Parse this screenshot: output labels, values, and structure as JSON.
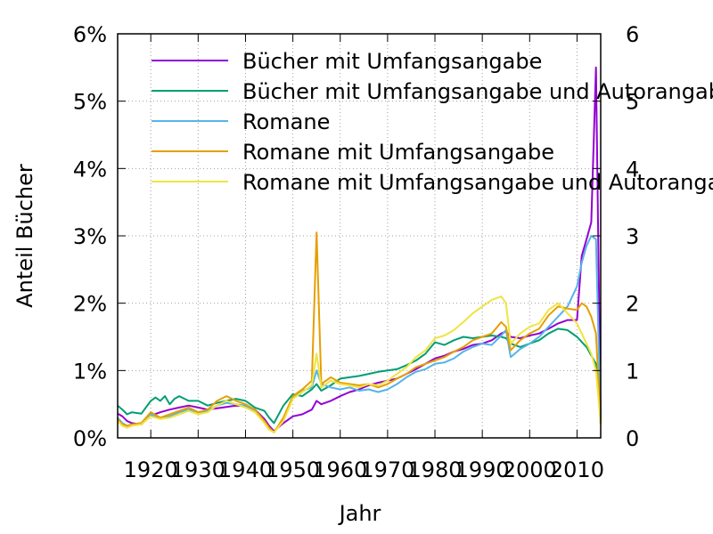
{
  "chart_data": {
    "type": "line",
    "title": "",
    "xlabel": "Jahr",
    "ylabel": "Anteil Bücher",
    "xlim": [
      1913,
      2015
    ],
    "ylim": [
      0,
      6
    ],
    "y2lim": [
      0,
      6
    ],
    "x_ticks": [
      "1920",
      "1930",
      "1940",
      "1950",
      "1960",
      "1970",
      "1980",
      "1990",
      "2000",
      "2010"
    ],
    "y_ticks": [
      "0%",
      "1%",
      "2%",
      "3%",
      "4%",
      "5%",
      "6%"
    ],
    "y2_ticks": [
      "0",
      "1",
      "2",
      "3",
      "4",
      "5",
      "6"
    ],
    "grid": true,
    "legend_position": "top-right",
    "series": [
      {
        "name": "Bücher mit Umfangsangabe",
        "color": "#9400d3",
        "x": [
          1913,
          1914,
          1915,
          1916,
          1918,
          1920,
          1922,
          1924,
          1926,
          1928,
          1930,
          1932,
          1934,
          1936,
          1938,
          1940,
          1942,
          1944,
          1945,
          1946,
          1948,
          1950,
          1952,
          1954,
          1955,
          1956,
          1958,
          1960,
          1962,
          1964,
          1966,
          1968,
          1970,
          1972,
          1974,
          1976,
          1978,
          1980,
          1982,
          1984,
          1986,
          1988,
          1990,
          1992,
          1994,
          1995,
          1996,
          1998,
          2000,
          2002,
          2004,
          2006,
          2008,
          2010,
          2011,
          2012,
          2013,
          2014,
          2015
        ],
        "values": [
          0.36,
          0.32,
          0.25,
          0.22,
          0.2,
          0.33,
          0.38,
          0.42,
          0.45,
          0.48,
          0.45,
          0.42,
          0.44,
          0.46,
          0.48,
          0.47,
          0.42,
          0.28,
          0.18,
          0.1,
          0.22,
          0.32,
          0.35,
          0.42,
          0.55,
          0.5,
          0.55,
          0.62,
          0.68,
          0.72,
          0.78,
          0.82,
          0.85,
          0.88,
          0.95,
          1.02,
          1.1,
          1.18,
          1.22,
          1.28,
          1.32,
          1.38,
          1.4,
          1.45,
          1.55,
          1.58,
          1.5,
          1.48,
          1.52,
          1.55,
          1.62,
          1.7,
          1.75,
          1.75,
          2.7,
          2.95,
          3.2,
          5.5,
          0.2
        ]
      },
      {
        "name": "Bücher mit Umfangsangabe und Autorangabe",
        "color": "#009e73",
        "x": [
          1913,
          1914,
          1915,
          1916,
          1918,
          1920,
          1921,
          1922,
          1923,
          1924,
          1925,
          1926,
          1928,
          1930,
          1932,
          1934,
          1936,
          1938,
          1940,
          1942,
          1944,
          1945,
          1946,
          1948,
          1950,
          1952,
          1954,
          1955,
          1956,
          1958,
          1960,
          1962,
          1964,
          1966,
          1968,
          1970,
          1972,
          1974,
          1976,
          1978,
          1980,
          1982,
          1984,
          1986,
          1988,
          1990,
          1992,
          1994,
          1995,
          1996,
          1998,
          2000,
          2002,
          2004,
          2006,
          2008,
          2010,
          2012,
          2014,
          2015
        ],
        "values": [
          0.48,
          0.42,
          0.35,
          0.38,
          0.36,
          0.55,
          0.6,
          0.55,
          0.62,
          0.5,
          0.58,
          0.62,
          0.55,
          0.55,
          0.48,
          0.52,
          0.55,
          0.58,
          0.55,
          0.45,
          0.4,
          0.3,
          0.22,
          0.48,
          0.65,
          0.62,
          0.72,
          0.8,
          0.7,
          0.78,
          0.88,
          0.9,
          0.92,
          0.95,
          0.98,
          1.0,
          1.02,
          1.08,
          1.15,
          1.25,
          1.42,
          1.38,
          1.45,
          1.5,
          1.48,
          1.5,
          1.52,
          1.5,
          1.48,
          1.4,
          1.35,
          1.4,
          1.45,
          1.55,
          1.62,
          1.6,
          1.5,
          1.35,
          1.1,
          0.25
        ]
      },
      {
        "name": "Romane",
        "color": "#56b4e9",
        "x": [
          1913,
          1914,
          1915,
          1916,
          1918,
          1920,
          1922,
          1924,
          1926,
          1928,
          1930,
          1932,
          1934,
          1936,
          1938,
          1940,
          1942,
          1944,
          1945,
          1946,
          1948,
          1950,
          1952,
          1954,
          1955,
          1956,
          1958,
          1960,
          1962,
          1964,
          1966,
          1968,
          1970,
          1972,
          1974,
          1976,
          1978,
          1980,
          1982,
          1984,
          1986,
          1988,
          1990,
          1992,
          1994,
          1995,
          1996,
          1998,
          2000,
          2002,
          2004,
          2006,
          2008,
          2010,
          2011,
          2012,
          2013,
          2014,
          2015
        ],
        "values": [
          0.3,
          0.22,
          0.18,
          0.2,
          0.22,
          0.35,
          0.3,
          0.32,
          0.38,
          0.42,
          0.38,
          0.4,
          0.48,
          0.52,
          0.5,
          0.48,
          0.4,
          0.25,
          0.15,
          0.08,
          0.28,
          0.6,
          0.7,
          0.75,
          1.0,
          0.8,
          0.75,
          0.72,
          0.75,
          0.7,
          0.72,
          0.68,
          0.72,
          0.8,
          0.9,
          0.98,
          1.02,
          1.1,
          1.12,
          1.18,
          1.28,
          1.35,
          1.4,
          1.38,
          1.52,
          1.6,
          1.2,
          1.32,
          1.4,
          1.5,
          1.65,
          1.8,
          1.95,
          2.25,
          2.6,
          2.85,
          3.0,
          2.95,
          0.2
        ]
      },
      {
        "name": "Romane mit Umfangsangabe",
        "color": "#e69f00",
        "x": [
          1913,
          1914,
          1915,
          1916,
          1918,
          1920,
          1922,
          1924,
          1926,
          1928,
          1930,
          1932,
          1934,
          1936,
          1938,
          1940,
          1942,
          1944,
          1945,
          1946,
          1948,
          1950,
          1952,
          1954,
          1955,
          1956,
          1958,
          1960,
          1962,
          1964,
          1966,
          1968,
          1970,
          1972,
          1974,
          1976,
          1978,
          1980,
          1982,
          1984,
          1986,
          1988,
          1990,
          1992,
          1994,
          1995,
          1996,
          1998,
          2000,
          2002,
          2004,
          2006,
          2008,
          2010,
          2011,
          2012,
          2013,
          2014,
          2015
        ],
        "values": [
          0.28,
          0.2,
          0.18,
          0.2,
          0.22,
          0.38,
          0.3,
          0.35,
          0.4,
          0.45,
          0.38,
          0.42,
          0.55,
          0.62,
          0.55,
          0.5,
          0.42,
          0.25,
          0.15,
          0.08,
          0.3,
          0.62,
          0.72,
          0.85,
          3.05,
          0.8,
          0.9,
          0.82,
          0.8,
          0.78,
          0.8,
          0.75,
          0.8,
          0.88,
          0.95,
          1.05,
          1.1,
          1.15,
          1.2,
          1.28,
          1.35,
          1.45,
          1.5,
          1.55,
          1.72,
          1.65,
          1.3,
          1.45,
          1.55,
          1.62,
          1.82,
          1.95,
          1.92,
          1.9,
          2.0,
          1.95,
          1.8,
          1.55,
          0.2
        ]
      },
      {
        "name": "Romane mit Umfangsangabe und Autorangabe",
        "color": "#f0e442",
        "x": [
          1913,
          1914,
          1915,
          1916,
          1918,
          1920,
          1922,
          1924,
          1926,
          1928,
          1930,
          1932,
          1934,
          1936,
          1938,
          1940,
          1942,
          1944,
          1945,
          1946,
          1948,
          1950,
          1952,
          1954,
          1955,
          1956,
          1958,
          1960,
          1962,
          1964,
          1966,
          1968,
          1970,
          1972,
          1974,
          1976,
          1978,
          1980,
          1982,
          1984,
          1986,
          1988,
          1990,
          1992,
          1994,
          1995,
          1996,
          1998,
          2000,
          2002,
          2004,
          2006,
          2008,
          2010,
          2011,
          2012,
          2013,
          2014,
          2015
        ],
        "values": [
          0.25,
          0.18,
          0.15,
          0.18,
          0.2,
          0.32,
          0.28,
          0.3,
          0.35,
          0.4,
          0.35,
          0.38,
          0.48,
          0.55,
          0.5,
          0.45,
          0.38,
          0.22,
          0.12,
          0.08,
          0.25,
          0.58,
          0.68,
          0.78,
          1.25,
          0.75,
          0.85,
          0.8,
          0.78,
          0.75,
          0.8,
          0.78,
          0.85,
          0.95,
          1.05,
          1.2,
          1.3,
          1.48,
          1.52,
          1.6,
          1.72,
          1.85,
          1.95,
          2.05,
          2.1,
          2.0,
          1.4,
          1.55,
          1.65,
          1.7,
          1.9,
          2.0,
          1.85,
          1.7,
          1.55,
          1.4,
          1.25,
          1.0,
          0.2
        ]
      }
    ]
  }
}
